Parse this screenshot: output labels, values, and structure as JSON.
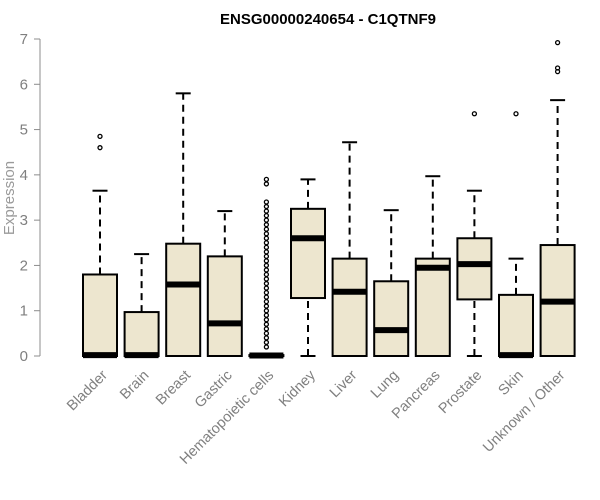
{
  "chart_data": {
    "type": "boxplot",
    "title": "ENSG00000240654 - C1QTNF9",
    "xlabel": "",
    "ylabel": "Expression",
    "ylim": [
      0,
      7
    ],
    "yticks": [
      0,
      1,
      2,
      3,
      4,
      5,
      6,
      7
    ],
    "box_fill": "#ede6cf",
    "categories": [
      "Bladder",
      "Brain",
      "Breast",
      "Gastric",
      "Hematopoietic cells",
      "Kidney",
      "Liver",
      "Lung",
      "Pancreas",
      "Prostate",
      "Skin",
      "Unknown / Other"
    ],
    "boxes": [
      {
        "name": "Bladder",
        "whisker_low": 0,
        "q1": 0,
        "median": 0.02,
        "q3": 1.8,
        "whisker_high": 3.65,
        "outliers": [
          4.6,
          4.85
        ]
      },
      {
        "name": "Brain",
        "whisker_low": 0,
        "q1": 0,
        "median": 0.02,
        "q3": 0.97,
        "whisker_high": 2.25,
        "outliers": []
      },
      {
        "name": "Breast",
        "whisker_low": 0,
        "q1": 0,
        "median": 1.58,
        "q3": 2.48,
        "whisker_high": 5.8,
        "outliers": []
      },
      {
        "name": "Gastric",
        "whisker_low": 0,
        "q1": 0,
        "median": 0.72,
        "q3": 2.2,
        "whisker_high": 3.2,
        "outliers": []
      },
      {
        "name": "Hematopoietic cells",
        "whisker_low": 0,
        "q1": 0,
        "median": 0.01,
        "q3": 0.02,
        "whisker_high": 0.05,
        "outliers": [
          0.2,
          0.3,
          0.4,
          0.5,
          0.6,
          0.7,
          0.8,
          0.9,
          1.0,
          1.1,
          1.2,
          1.3,
          1.4,
          1.5,
          1.6,
          1.7,
          1.8,
          1.9,
          2.0,
          2.1,
          2.2,
          2.3,
          2.4,
          2.5,
          2.6,
          2.7,
          2.8,
          2.9,
          3.0,
          3.1,
          3.2,
          3.3,
          3.4,
          3.8,
          3.9
        ]
      },
      {
        "name": "Kidney",
        "whisker_low": 0,
        "q1": 1.28,
        "median": 2.6,
        "q3": 3.25,
        "whisker_high": 3.9,
        "outliers": []
      },
      {
        "name": "Liver",
        "whisker_low": 0,
        "q1": 0,
        "median": 1.42,
        "q3": 2.15,
        "whisker_high": 4.72,
        "outliers": []
      },
      {
        "name": "Lung",
        "whisker_low": 0,
        "q1": 0,
        "median": 0.57,
        "q3": 1.65,
        "whisker_high": 3.22,
        "outliers": []
      },
      {
        "name": "Pancreas",
        "whisker_low": 0,
        "q1": 0,
        "median": 1.95,
        "q3": 2.15,
        "whisker_high": 3.97,
        "outliers": []
      },
      {
        "name": "Prostate",
        "whisker_low": 0,
        "q1": 1.25,
        "median": 2.03,
        "q3": 2.6,
        "whisker_high": 3.65,
        "outliers": [
          5.35
        ]
      },
      {
        "name": "Skin",
        "whisker_low": 0,
        "q1": 0,
        "median": 0.02,
        "q3": 1.35,
        "whisker_high": 2.15,
        "outliers": [
          5.35
        ]
      },
      {
        "name": "Unknown / Other",
        "whisker_low": 0,
        "q1": 0,
        "median": 1.2,
        "q3": 2.45,
        "whisker_high": 5.65,
        "outliers": [
          6.28,
          6.36,
          6.92
        ]
      }
    ]
  }
}
